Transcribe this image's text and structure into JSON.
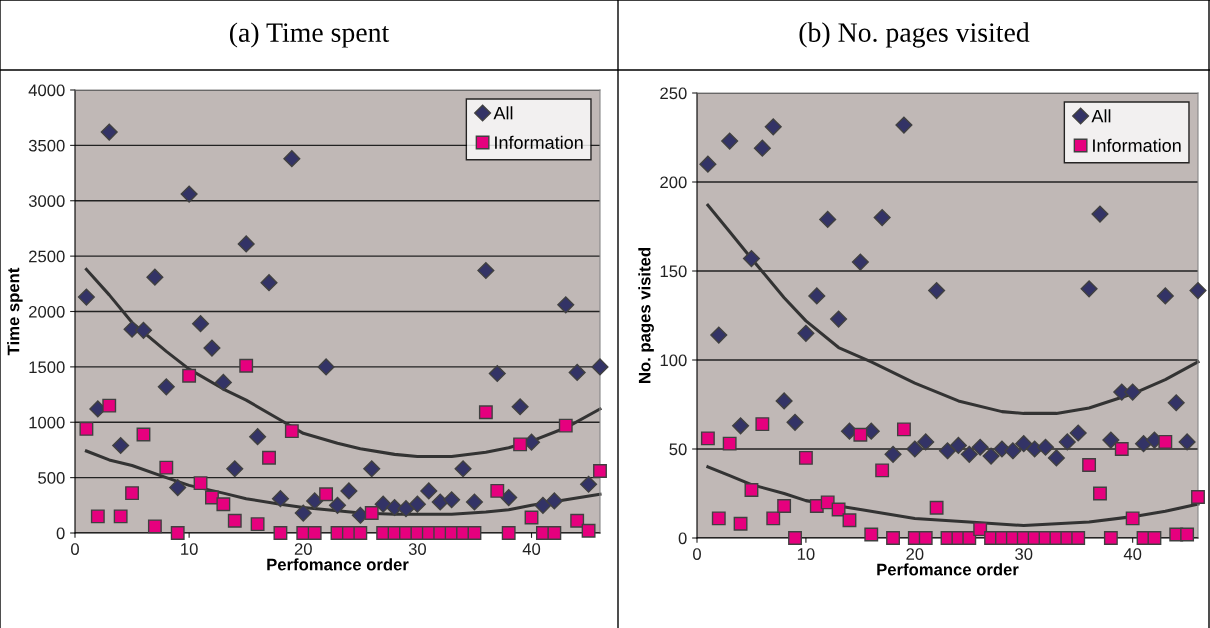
{
  "chart_data": [
    {
      "type": "scatter",
      "title": "(a) Time spent",
      "xlabel": "Perfomance order",
      "ylabel": "Time spent",
      "xlim": [
        0,
        46
      ],
      "xticks": [
        0,
        10,
        20,
        30,
        40
      ],
      "ylim": [
        0,
        4000
      ],
      "yticks": [
        0,
        500,
        1000,
        1500,
        2000,
        2500,
        3000,
        3500,
        4000
      ],
      "grid": "y",
      "legend": "top right",
      "x": [
        1,
        2,
        3,
        4,
        5,
        6,
        7,
        8,
        9,
        10,
        11,
        12,
        13,
        14,
        15,
        16,
        17,
        18,
        19,
        20,
        21,
        22,
        23,
        24,
        25,
        26,
        27,
        28,
        29,
        30,
        31,
        32,
        33,
        34,
        35,
        36,
        37,
        38,
        39,
        40,
        41,
        42,
        43,
        44,
        45,
        46
      ],
      "series": [
        {
          "name": "All",
          "color": "#333366",
          "marker": "diamond",
          "values": [
            2130,
            1120,
            3620,
            790,
            1840,
            1830,
            2310,
            1320,
            410,
            3060,
            1890,
            1670,
            1360,
            580,
            2610,
            870,
            2260,
            310,
            3380,
            180,
            290,
            1500,
            250,
            380,
            160,
            580,
            260,
            230,
            220,
            260,
            380,
            280,
            300,
            580,
            280,
            2370,
            1440,
            320,
            1140,
            820,
            250,
            290,
            2060,
            1450,
            440,
            1500
          ]
        },
        {
          "name": "Information",
          "color": "#e6007e",
          "marker": "square",
          "values": [
            940,
            150,
            1150,
            150,
            360,
            890,
            60,
            590,
            0,
            1420,
            450,
            320,
            260,
            110,
            1510,
            80,
            680,
            0,
            920,
            0,
            0,
            350,
            0,
            0,
            0,
            180,
            0,
            0,
            0,
            0,
            0,
            0,
            0,
            0,
            0,
            1090,
            380,
            0,
            800,
            140,
            0,
            0,
            970,
            110,
            20,
            560
          ]
        },
        {
          "type": "line",
          "color": "#333333",
          "x": [
            1,
            3,
            5,
            8,
            10,
            13,
            15,
            18,
            20,
            23,
            25,
            28,
            30,
            33,
            36,
            38,
            40,
            43,
            46
          ],
          "values": [
            2380,
            2150,
            1900,
            1640,
            1480,
            1300,
            1200,
            1020,
            900,
            810,
            760,
            710,
            690,
            690,
            730,
            770,
            830,
            950,
            1120
          ]
        },
        {
          "type": "line",
          "color": "#333333",
          "x": [
            1,
            3,
            5,
            8,
            10,
            13,
            15,
            18,
            20,
            23,
            25,
            28,
            30,
            33,
            36,
            38,
            40,
            43,
            46
          ],
          "values": [
            740,
            660,
            610,
            500,
            430,
            360,
            310,
            260,
            230,
            200,
            180,
            170,
            170,
            170,
            190,
            210,
            250,
            300,
            350
          ]
        }
      ]
    },
    {
      "type": "scatter",
      "title": "(b) No. pages visited",
      "xlabel": "Perfomance order",
      "ylabel": "No. pages visited",
      "xlim": [
        0,
        46
      ],
      "xticks": [
        0,
        10,
        20,
        30,
        40
      ],
      "ylim": [
        0,
        250
      ],
      "yticks": [
        0,
        50,
        100,
        150,
        200,
        250
      ],
      "grid": "y",
      "legend": "top right",
      "x": [
        1,
        2,
        3,
        4,
        5,
        6,
        7,
        8,
        9,
        10,
        11,
        12,
        13,
        14,
        15,
        16,
        17,
        18,
        19,
        20,
        21,
        22,
        23,
        24,
        25,
        26,
        27,
        28,
        29,
        30,
        31,
        32,
        33,
        34,
        35,
        36,
        37,
        38,
        39,
        40,
        41,
        42,
        43,
        44,
        45,
        46
      ],
      "series": [
        {
          "name": "All",
          "color": "#333366",
          "marker": "diamond",
          "values": [
            210,
            114,
            223,
            63,
            157,
            219,
            231,
            77,
            65,
            115,
            136,
            179,
            123,
            60,
            155,
            60,
            180,
            47,
            232,
            50,
            54,
            139,
            49,
            52,
            47,
            51,
            46,
            50,
            49,
            53,
            50,
            51,
            45,
            54,
            59,
            140,
            182,
            55,
            82,
            82,
            53,
            55,
            136,
            76,
            54,
            139
          ]
        },
        {
          "name": "Information",
          "color": "#e6007e",
          "marker": "square",
          "values": [
            56,
            11,
            53,
            8,
            27,
            64,
            11,
            18,
            0,
            45,
            18,
            20,
            16,
            10,
            58,
            2,
            38,
            0,
            61,
            0,
            0,
            17,
            0,
            0,
            0,
            5,
            0,
            0,
            0,
            0,
            0,
            0,
            0,
            0,
            0,
            41,
            25,
            0,
            50,
            11,
            0,
            0,
            54,
            2,
            2,
            23
          ]
        },
        {
          "type": "line",
          "color": "#333333",
          "x": [
            1,
            3,
            5,
            8,
            10,
            13,
            16,
            20,
            24,
            28,
            30,
            33,
            36,
            40,
            43,
            46
          ],
          "values": [
            187,
            172,
            157,
            135,
            122,
            107,
            99,
            87,
            77,
            71,
            70,
            70,
            73,
            81,
            89,
            99
          ]
        },
        {
          "type": "line",
          "color": "#333333",
          "x": [
            1,
            3,
            5,
            8,
            10,
            13,
            15,
            20,
            25,
            30,
            33,
            36,
            40,
            43,
            46
          ],
          "values": [
            40,
            35,
            30,
            25,
            21,
            18,
            16,
            11,
            9,
            7,
            8,
            9,
            12,
            15,
            19
          ]
        }
      ]
    }
  ]
}
